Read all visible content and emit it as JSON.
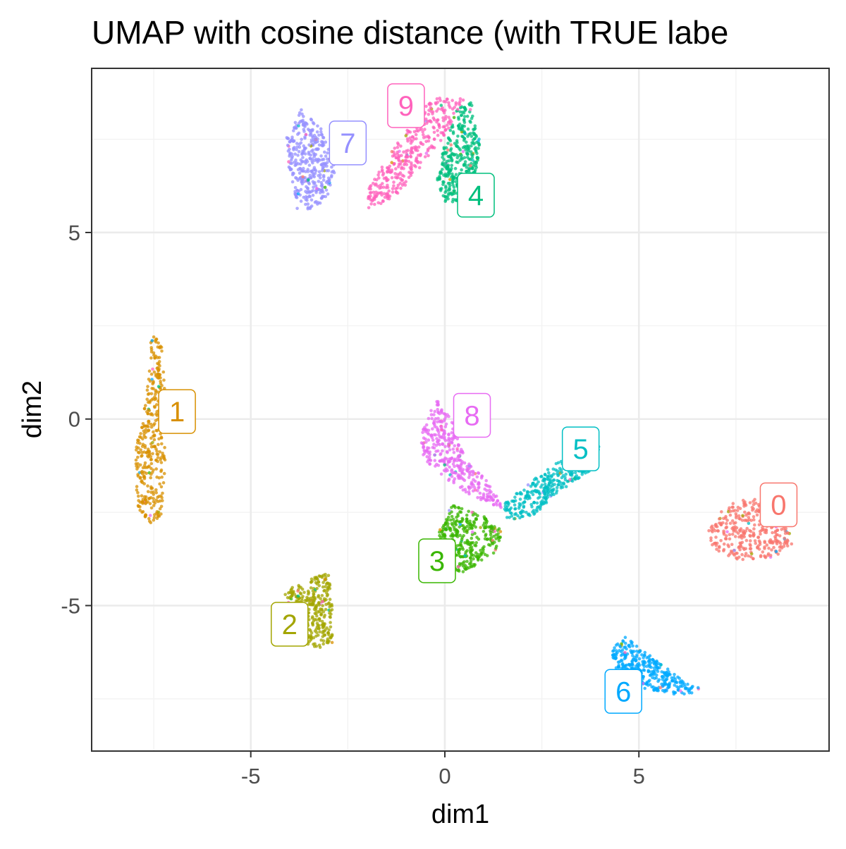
{
  "chart_data": {
    "type": "scatter",
    "title": "UMAP with cosine distance (with TRUE labe",
    "xlabel": "dim1",
    "ylabel": "dim2",
    "xlim": [
      -9.1,
      9.9
    ],
    "ylim": [
      -8.9,
      9.4
    ],
    "xticks": [
      -5,
      0,
      5
    ],
    "yticks": [
      -5,
      0,
      5
    ],
    "xtick_labels": [
      "-5",
      "0",
      "5"
    ],
    "ytick_labels": [
      "-5",
      "0",
      "5"
    ],
    "grid": true,
    "legend": "none",
    "clusters": [
      {
        "label": "0",
        "color": "#F8766D",
        "center": [
          7.8,
          -3.0
        ],
        "label_pos": [
          8.6,
          -2.3
        ],
        "hull": [
          [
            7.6,
            -2.1
          ],
          [
            8.5,
            -2.2
          ],
          [
            9.0,
            -2.6
          ],
          [
            9.0,
            -3.3
          ],
          [
            8.5,
            -3.7
          ],
          [
            7.6,
            -3.8
          ],
          [
            6.9,
            -3.5
          ],
          [
            6.8,
            -3.0
          ],
          [
            7.1,
            -2.5
          ]
        ]
      },
      {
        "label": "1",
        "color": "#D89000",
        "center": [
          -7.6,
          -0.3
        ],
        "label_pos": [
          -6.9,
          0.2
        ],
        "hull": [
          [
            -7.5,
            2.4
          ],
          [
            -7.3,
            2.0
          ],
          [
            -7.2,
            0.5
          ],
          [
            -7.2,
            -1.5
          ],
          [
            -7.3,
            -2.7
          ],
          [
            -7.6,
            -2.8
          ],
          [
            -7.9,
            -2.5
          ],
          [
            -8.0,
            -1.0
          ],
          [
            -7.7,
            0.5
          ],
          [
            -7.6,
            2.0
          ]
        ]
      },
      {
        "label": "2",
        "color": "#A3A500",
        "center": [
          -3.4,
          -5.2
        ],
        "label_pos": [
          -4.0,
          -5.5
        ],
        "hull": [
          [
            -3.0,
            -4.1
          ],
          [
            -2.9,
            -5.0
          ],
          [
            -2.9,
            -6.0
          ],
          [
            -3.3,
            -6.2
          ],
          [
            -3.8,
            -5.9
          ],
          [
            -4.2,
            -5.2
          ],
          [
            -4.1,
            -4.6
          ],
          [
            -3.5,
            -4.3
          ]
        ]
      },
      {
        "label": "3",
        "color": "#39B600",
        "center": [
          0.5,
          -3.4
        ],
        "label_pos": [
          -0.2,
          -3.8
        ],
        "hull": [
          [
            0.2,
            -2.3
          ],
          [
            1.0,
            -2.6
          ],
          [
            1.5,
            -3.0
          ],
          [
            1.3,
            -3.6
          ],
          [
            0.5,
            -4.1
          ],
          [
            -0.2,
            -4.0
          ],
          [
            -0.2,
            -3.2
          ],
          [
            0.0,
            -2.6
          ]
        ]
      },
      {
        "label": "4",
        "color": "#00BF7D",
        "center": [
          0.5,
          7.2
        ],
        "label_pos": [
          0.8,
          6.0
        ],
        "hull": [
          [
            0.7,
            8.5
          ],
          [
            0.9,
            7.5
          ],
          [
            0.8,
            6.2
          ],
          [
            0.5,
            5.8
          ],
          [
            0.0,
            5.8
          ],
          [
            -0.2,
            6.4
          ],
          [
            0.0,
            7.4
          ],
          [
            0.3,
            8.3
          ]
        ]
      },
      {
        "label": "5",
        "color": "#00BFC4",
        "center": [
          2.7,
          -1.7
        ],
        "label_pos": [
          3.5,
          -0.8
        ],
        "hull": [
          [
            4.0,
            -0.6
          ],
          [
            3.9,
            -1.3
          ],
          [
            3.0,
            -1.9
          ],
          [
            2.3,
            -2.6
          ],
          [
            1.6,
            -2.7
          ],
          [
            1.5,
            -2.3
          ],
          [
            2.3,
            -1.6
          ],
          [
            3.1,
            -1.0
          ]
        ]
      },
      {
        "label": "6",
        "color": "#00A9FF",
        "center": [
          5.4,
          -6.8
        ],
        "label_pos": [
          4.6,
          -7.3
        ],
        "hull": [
          [
            4.6,
            -5.8
          ],
          [
            5.1,
            -6.2
          ],
          [
            6.0,
            -6.9
          ],
          [
            6.7,
            -7.3
          ],
          [
            6.0,
            -7.4
          ],
          [
            5.0,
            -7.2
          ],
          [
            4.4,
            -6.8
          ],
          [
            4.3,
            -6.2
          ]
        ]
      },
      {
        "label": "7",
        "color": "#9590FF",
        "center": [
          -3.5,
          7.0
        ],
        "label_pos": [
          -2.5,
          7.4
        ],
        "hull": [
          [
            -3.7,
            8.3
          ],
          [
            -3.2,
            7.8
          ],
          [
            -2.8,
            6.8
          ],
          [
            -3.0,
            6.0
          ],
          [
            -3.4,
            5.6
          ],
          [
            -3.8,
            5.6
          ],
          [
            -4.0,
            6.5
          ],
          [
            -4.1,
            7.5
          ]
        ]
      },
      {
        "label": "8",
        "color": "#E76BF3",
        "center": [
          -0.2,
          -0.7
        ],
        "label_pos": [
          0.7,
          0.1
        ],
        "hull": [
          [
            -0.2,
            0.5
          ],
          [
            0.2,
            0.0
          ],
          [
            0.5,
            -1.0
          ],
          [
            1.2,
            -1.8
          ],
          [
            1.5,
            -2.4
          ],
          [
            0.9,
            -2.2
          ],
          [
            0.0,
            -1.6
          ],
          [
            -0.6,
            -1.0
          ],
          [
            -0.6,
            -0.2
          ]
        ]
      },
      {
        "label": "9",
        "color": "#FF62BC",
        "center": [
          -1.0,
          6.9
        ],
        "label_pos": [
          -1.0,
          8.4
        ],
        "hull": [
          [
            0.5,
            8.6
          ],
          [
            0.0,
            7.6
          ],
          [
            -0.6,
            6.8
          ],
          [
            -1.2,
            6.0
          ],
          [
            -2.0,
            5.6
          ],
          [
            -2.0,
            6.1
          ],
          [
            -1.5,
            7.0
          ],
          [
            -0.8,
            8.0
          ],
          [
            -0.3,
            8.6
          ]
        ]
      }
    ]
  }
}
